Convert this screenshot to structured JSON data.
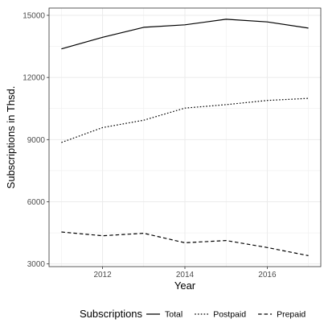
{
  "chart_data": {
    "type": "line",
    "xlabel": "Year",
    "ylabel": "Subscriptions in Thsd.",
    "xlim": [
      2010.7,
      2017.3
    ],
    "ylim": [
      2870,
      15350
    ],
    "x_ticks": [
      2012,
      2014,
      2016
    ],
    "y_ticks": [
      3000,
      6000,
      9000,
      12000,
      15000
    ],
    "x_minor_ticks": [
      2011,
      2013,
      2015,
      2017
    ],
    "y_minor_ticks": [
      4500,
      7500,
      10500,
      13500
    ],
    "grid": true,
    "legend_position": "bottom",
    "legend_title": "Subscriptions",
    "x": [
      2011,
      2012,
      2013,
      2014,
      2015,
      2016,
      2017
    ],
    "series": [
      {
        "name": "Total",
        "linetype": "solid",
        "values": [
          13380,
          13940,
          14420,
          14540,
          14810,
          14680,
          14380
        ]
      },
      {
        "name": "Postpaid",
        "linetype": "dotted",
        "values": [
          8860,
          9580,
          9940,
          10520,
          10690,
          10890,
          10990
        ]
      },
      {
        "name": "Prepaid",
        "linetype": "dashed",
        "values": [
          4540,
          4360,
          4480,
          4020,
          4130,
          3790,
          3400
        ]
      }
    ],
    "colors": {
      "line": "#000000",
      "grid": "#ebebeb",
      "panel_border": "#333333",
      "tick_text": "#4d4d4d"
    }
  }
}
